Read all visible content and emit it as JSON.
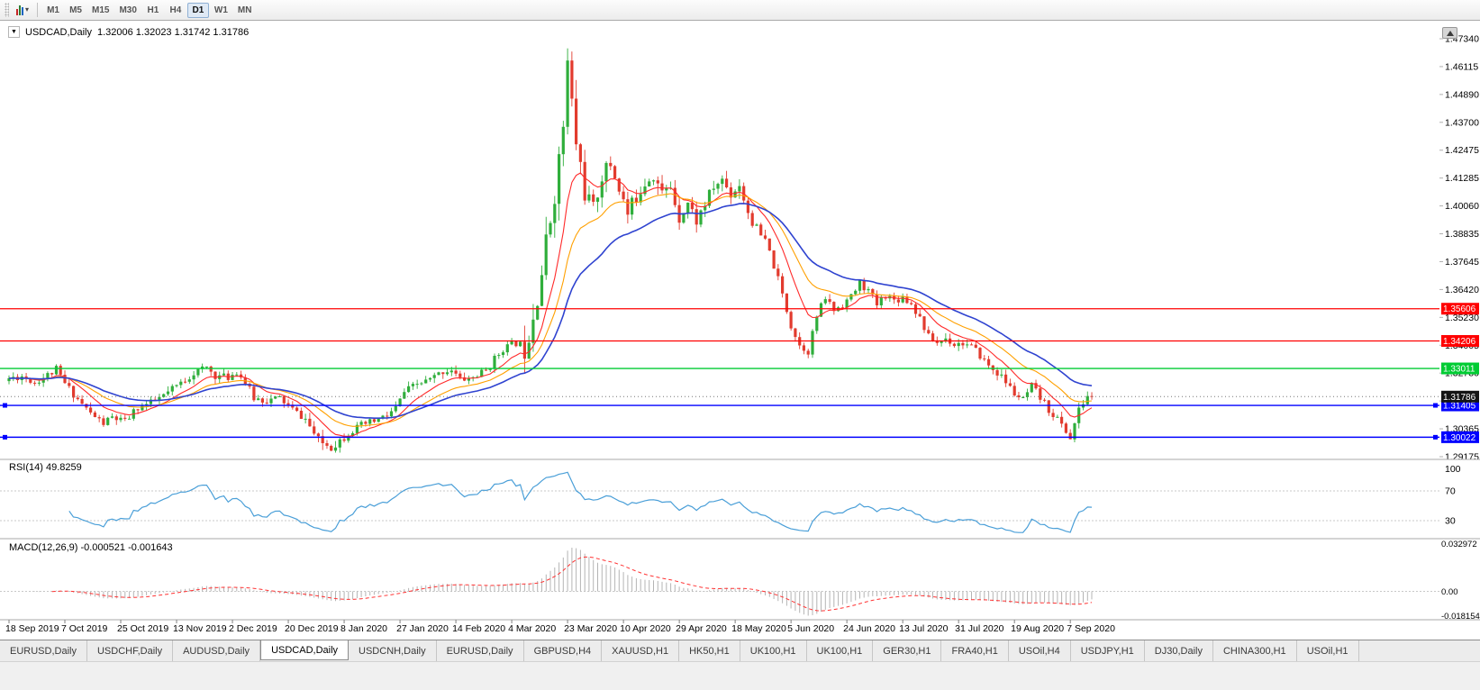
{
  "colors": {
    "bull": "#2fae3b",
    "bear": "#e23b2e",
    "ma_fast": "#ff2a2a",
    "ma_mid": "#ffa000",
    "ma_slow": "#2f43d0",
    "rsi_line": "#4a9fd8",
    "macd_hist": "#b4b4b4",
    "macd_signal": "#ff3232",
    "axis_text": "#000000",
    "level_dash": "#c8c8c8"
  },
  "toolbar": {
    "timeframes": [
      "M1",
      "M5",
      "M15",
      "M30",
      "H1",
      "H4",
      "D1",
      "W1",
      "MN"
    ],
    "active_timeframe": "D1"
  },
  "chart": {
    "symbol_label": "USDCAD,Daily",
    "ohlc": "1.32006 1.32023 1.31742 1.31786",
    "price_axis_labels": [
      "1.47340",
      "1.46115",
      "1.44890",
      "1.43700",
      "1.42475",
      "1.41285",
      "1.40060",
      "1.38835",
      "1.37645",
      "1.36420",
      "1.35230",
      "1.34005",
      "1.32780",
      "1.31590",
      "1.30365",
      "1.29175"
    ],
    "date_axis_labels": [
      "18 Sep 2019",
      "7 Oct 2019",
      "25 Oct 2019",
      "13 Nov 2019",
      "2 Dec 2019",
      "20 Dec 2019",
      "8 Jan 2020",
      "27 Jan 2020",
      "14 Feb 2020",
      "4 Mar 2020",
      "23 Mar 2020",
      "10 Apr 2020",
      "29 Apr 2020",
      "18 May 2020",
      "5 Jun 2020",
      "24 Jun 2020",
      "13 Jul 2020",
      "31 Jul 2020",
      "19 Aug 2020",
      "7 Sep 2020"
    ],
    "hlines": [
      {
        "price": 1.35606,
        "label": "1.35606",
        "color": "#ff0000",
        "width": 1.2,
        "handles": false
      },
      {
        "price": 1.34206,
        "label": "1.34206",
        "color": "#ff0000",
        "width": 1.2,
        "handles": false
      },
      {
        "price": 1.33011,
        "label": "1.33011",
        "color": "#00cc33",
        "width": 1.4,
        "handles": false
      },
      {
        "price": 1.31405,
        "label": "1.31405",
        "color": "#0000ff",
        "width": 1.4,
        "handles": true
      },
      {
        "price": 1.30022,
        "label": "1.30022",
        "color": "#0000ff",
        "width": 1.4,
        "handles": true
      }
    ],
    "current_price": {
      "price": 1.31786,
      "label": "1.31786",
      "box_color": "#141414"
    }
  },
  "indicators": {
    "rsi": {
      "label": "RSI(14) 49.8259",
      "period": 14,
      "levels": [
        100,
        70,
        30
      ],
      "level_labels": [
        "100",
        "70",
        "30"
      ]
    },
    "macd": {
      "label": "MACD(12,26,9) -0.000521 -0.001643",
      "fast": 12,
      "slow": 26,
      "signal": 9,
      "scale_labels": [
        "0.032972",
        "0.00",
        "-0.018154"
      ],
      "max": 0.032972,
      "min": -0.018154
    }
  },
  "chart_data": {
    "type": "candlestick",
    "symbol": "USDCAD",
    "timeframe": "Daily",
    "count": 253,
    "ylim": [
      1.29175,
      1.4734
    ],
    "moving_averages": [
      {
        "period": 10,
        "color": "#ff2a2a"
      },
      {
        "period": 20,
        "color": "#ffa000"
      },
      {
        "period": 34,
        "color": "#2f43d0"
      }
    ],
    "close_anchors": [
      [
        0,
        1.3258
      ],
      [
        3,
        1.3268
      ],
      [
        6,
        1.3242
      ],
      [
        9,
        1.3272
      ],
      [
        11,
        1.3296
      ],
      [
        13,
        1.3235
      ],
      [
        16,
        1.3168
      ],
      [
        19,
        1.3105
      ],
      [
        22,
        1.3062
      ],
      [
        24,
        1.3088
      ],
      [
        27,
        1.3068
      ],
      [
        30,
        1.3132
      ],
      [
        33,
        1.315
      ],
      [
        36,
        1.3182
      ],
      [
        40,
        1.3238
      ],
      [
        43,
        1.3282
      ],
      [
        46,
        1.3305
      ],
      [
        48,
        1.327
      ],
      [
        51,
        1.3262
      ],
      [
        53,
        1.329
      ],
      [
        55,
        1.324
      ],
      [
        57,
        1.3172
      ],
      [
        60,
        1.3162
      ],
      [
        63,
        1.3172
      ],
      [
        66,
        1.3122
      ],
      [
        69,
        1.308
      ],
      [
        72,
        1.2985
      ],
      [
        75,
        1.2962
      ],
      [
        77,
        1.299
      ],
      [
        79,
        1.3022
      ],
      [
        82,
        1.3052
      ],
      [
        85,
        1.3072
      ],
      [
        88,
        1.3095
      ],
      [
        90,
        1.3128
      ],
      [
        92,
        1.3198
      ],
      [
        95,
        1.3232
      ],
      [
        98,
        1.3252
      ],
      [
        101,
        1.3288
      ],
      [
        103,
        1.3298
      ],
      [
        105,
        1.3252
      ],
      [
        108,
        1.3262
      ],
      [
        111,
        1.3292
      ],
      [
        113,
        1.3342
      ],
      [
        115,
        1.3388
      ],
      [
        118,
        1.3412
      ],
      [
        120,
        1.3398
      ],
      [
        122,
        1.3548
      ],
      [
        124,
        1.3722
      ],
      [
        126,
        1.3952
      ],
      [
        128,
        1.4198
      ],
      [
        129,
        1.4355
      ],
      [
        130,
        1.462
      ],
      [
        131,
        1.4448
      ],
      [
        132,
        1.4285
      ],
      [
        134,
        1.4078
      ],
      [
        136,
        1.399
      ],
      [
        138,
        1.4142
      ],
      [
        140,
        1.4188
      ],
      [
        142,
        1.4088
      ],
      [
        144,
        1.3968
      ],
      [
        146,
        1.4052
      ],
      [
        148,
        1.4118
      ],
      [
        150,
        1.415
      ],
      [
        152,
        1.4058
      ],
      [
        154,
        1.4092
      ],
      [
        156,
        1.3958
      ],
      [
        158,
        1.4022
      ],
      [
        160,
        1.3942
      ],
      [
        162,
        1.4018
      ],
      [
        164,
        1.4088
      ],
      [
        166,
        1.4122
      ],
      [
        168,
        1.4058
      ],
      [
        170,
        1.4102
      ],
      [
        172,
        1.3982
      ],
      [
        174,
        1.3902
      ],
      [
        176,
        1.3848
      ],
      [
        178,
        1.3752
      ],
      [
        180,
        1.3622
      ],
      [
        182,
        1.3488
      ],
      [
        184,
        1.3402
      ],
      [
        186,
        1.3378
      ],
      [
        188,
        1.3528
      ],
      [
        190,
        1.3608
      ],
      [
        192,
        1.3555
      ],
      [
        194,
        1.3582
      ],
      [
        196,
        1.3612
      ],
      [
        198,
        1.3672
      ],
      [
        200,
        1.3638
      ],
      [
        202,
        1.3578
      ],
      [
        204,
        1.3622
      ],
      [
        206,
        1.3598
      ],
      [
        208,
        1.3612
      ],
      [
        210,
        1.3582
      ],
      [
        212,
        1.3522
      ],
      [
        214,
        1.3438
      ],
      [
        216,
        1.3412
      ],
      [
        218,
        1.3432
      ],
      [
        220,
        1.3408
      ],
      [
        222,
        1.3412
      ],
      [
        224,
        1.3392
      ],
      [
        226,
        1.3358
      ],
      [
        228,
        1.3312
      ],
      [
        230,
        1.3282
      ],
      [
        232,
        1.3242
      ],
      [
        234,
        1.3192
      ],
      [
        236,
        1.3162
      ],
      [
        238,
        1.3222
      ],
      [
        240,
        1.3172
      ],
      [
        242,
        1.3122
      ],
      [
        244,
        1.3082
      ],
      [
        246,
        1.3028
      ],
      [
        247,
        1.2998
      ],
      [
        248,
        1.3062
      ],
      [
        249,
        1.3118
      ],
      [
        250,
        1.3152
      ],
      [
        251,
        1.3182
      ],
      [
        252,
        1.31786
      ]
    ]
  },
  "tabs": {
    "active_index": 3,
    "items": [
      "EURUSD,Daily",
      "USDCHF,Daily",
      "AUDUSD,Daily",
      "USDCAD,Daily",
      "USDCNH,Daily",
      "EURUSD,Daily",
      "GBPUSD,H4",
      "XAUUSD,H1",
      "HK50,H1",
      "UK100,H1",
      "UK100,H1",
      "GER30,H1",
      "FRA40,H1",
      "USOil,H4",
      "USDJPY,H1",
      "DJ30,Daily",
      "CHINA300,H1",
      "USOil,H1"
    ]
  }
}
